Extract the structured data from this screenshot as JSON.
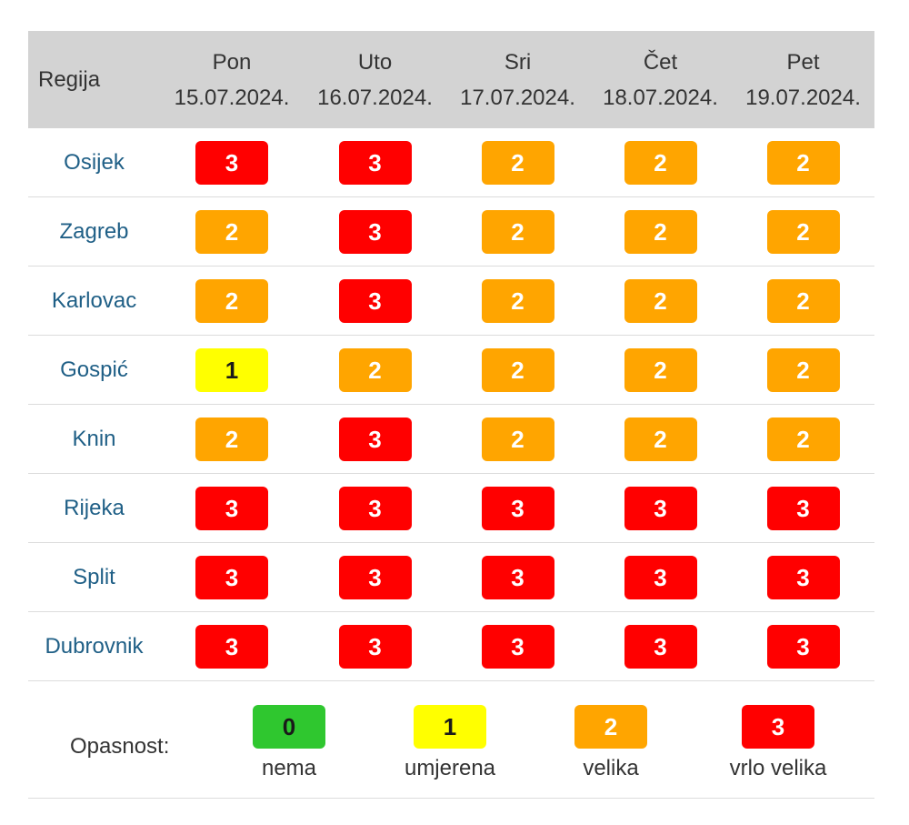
{
  "table": {
    "region_header": "Regija",
    "days": [
      {
        "day": "Pon",
        "date": "15.07.2024."
      },
      {
        "day": "Uto",
        "date": "16.07.2024."
      },
      {
        "day": "Sri",
        "date": "17.07.2024."
      },
      {
        "day": "Čet",
        "date": "18.07.2024."
      },
      {
        "day": "Pet",
        "date": "19.07.2024."
      }
    ],
    "rows": [
      {
        "region": "Osijek",
        "levels": [
          "3",
          "3",
          "2",
          "2",
          "2"
        ]
      },
      {
        "region": "Zagreb",
        "levels": [
          "2",
          "3",
          "2",
          "2",
          "2"
        ]
      },
      {
        "region": "Karlovac",
        "levels": [
          "2",
          "3",
          "2",
          "2",
          "2"
        ]
      },
      {
        "region": "Gospić",
        "levels": [
          "1",
          "2",
          "2",
          "2",
          "2"
        ]
      },
      {
        "region": "Knin",
        "levels": [
          "2",
          "3",
          "2",
          "2",
          "2"
        ]
      },
      {
        "region": "Rijeka",
        "levels": [
          "3",
          "3",
          "3",
          "3",
          "3"
        ]
      },
      {
        "region": "Split",
        "levels": [
          "3",
          "3",
          "3",
          "3",
          "3"
        ]
      },
      {
        "region": "Dubrovnik",
        "levels": [
          "3",
          "3",
          "3",
          "3",
          "3"
        ]
      }
    ]
  },
  "legend": {
    "title": "Opasnost:",
    "items": [
      {
        "level": "0",
        "label": "nema"
      },
      {
        "level": "1",
        "label": "umjerena"
      },
      {
        "level": "2",
        "label": "velika"
      },
      {
        "level": "3",
        "label": "vrlo velika"
      }
    ]
  },
  "colors": {
    "0": "#2fc72f",
    "1": "#ffff00",
    "2": "#ffa500",
    "3": "#ff0000",
    "header_bg": "#d3d3d3",
    "region_text": "#1f5f86"
  }
}
